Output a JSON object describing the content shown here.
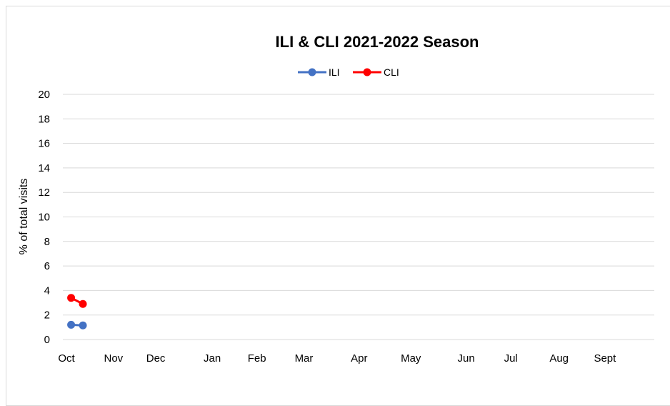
{
  "chart_data": {
    "type": "line",
    "title": "ILI & CLI 2021-2022 Season",
    "xlabel": "",
    "ylabel": "% of total visits",
    "ylim": [
      0,
      20
    ],
    "yticks": [
      0,
      2,
      4,
      6,
      8,
      10,
      12,
      14,
      16,
      18,
      20
    ],
    "x_range": [
      0,
      50
    ],
    "month_ticks": [
      {
        "label": "Oct",
        "pos": 0
      },
      {
        "label": "Nov",
        "pos": 4
      },
      {
        "label": "Dec",
        "pos": 7.6
      },
      {
        "label": "Jan",
        "pos": 12.4
      },
      {
        "label": "Feb",
        "pos": 16.2
      },
      {
        "label": "Mar",
        "pos": 20.2
      },
      {
        "label": "Apr",
        "pos": 24.9
      },
      {
        "label": "May",
        "pos": 29.3
      },
      {
        "label": "Jun",
        "pos": 34
      },
      {
        "label": "Jul",
        "pos": 37.8
      },
      {
        "label": "Aug",
        "pos": 41.9
      },
      {
        "label": "Sept",
        "pos": 45.8
      }
    ],
    "grid": true,
    "legend_position": "top-center",
    "series": [
      {
        "name": "ILI",
        "color": "#4472c4",
        "points": [
          {
            "x": 0.4,
            "y": 1.2
          },
          {
            "x": 1.4,
            "y": 1.15
          }
        ]
      },
      {
        "name": "CLI",
        "color": "#ff0000",
        "points": [
          {
            "x": 0.4,
            "y": 3.4
          },
          {
            "x": 1.4,
            "y": 2.9
          }
        ]
      }
    ]
  },
  "colors": {
    "grid": "#d9d9d9",
    "frame": "#d9d9d9"
  }
}
